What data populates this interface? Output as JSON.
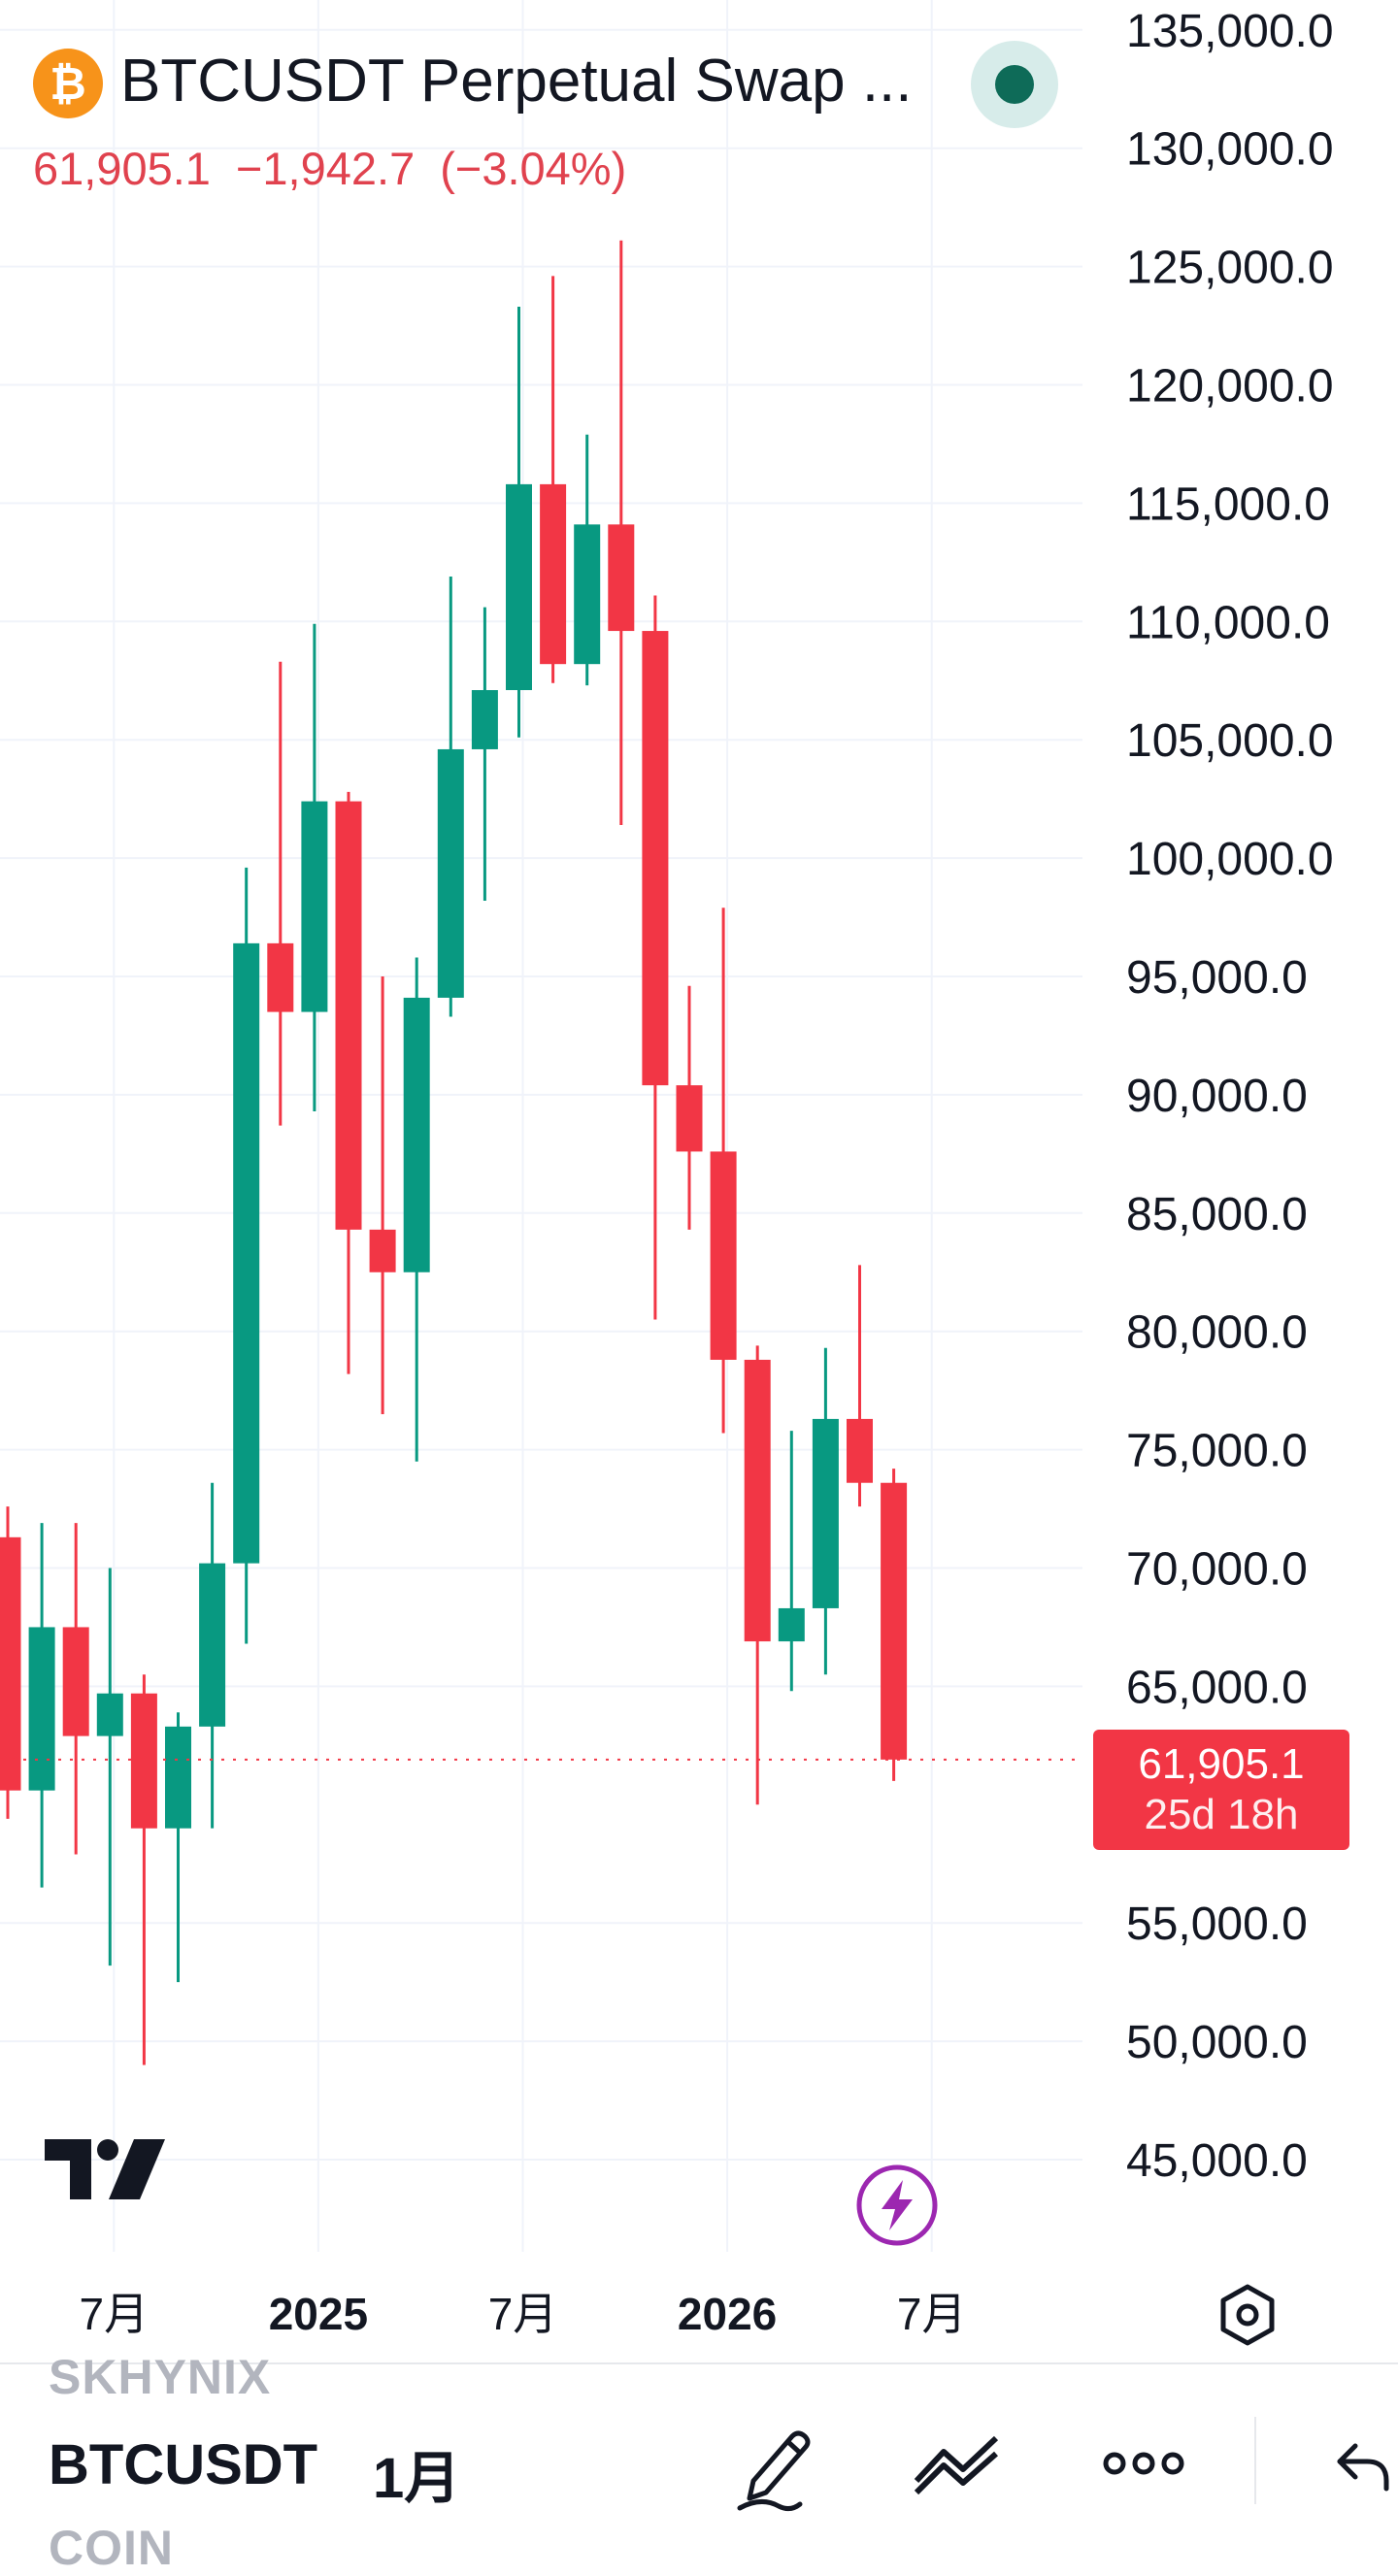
{
  "header": {
    "title": "BTCUSDT Perpetual Swap ...",
    "coin_icon_glyph": "₿",
    "last_price": "61,905.1",
    "change": "−1,942.7",
    "change_pct": "(−3.04%)",
    "down_color": "#f23645",
    "up_color": "#089981"
  },
  "price_badge": {
    "price": "61,905.1",
    "countdown": "25d 18h"
  },
  "bottom_bar": {
    "watermark_top": "SKHYNIX",
    "watermark_bottom": "COIN",
    "symbol": "BTCUSDT",
    "interval": "1月",
    "icons": [
      "pencil-icon",
      "line-tool-icon",
      "more-icon",
      "back-icon"
    ]
  },
  "chart_data": {
    "type": "candlestick",
    "interval": "1M",
    "ylim": [
      42000,
      136000
    ],
    "y_ticks": [
      "135,000.0",
      "130,000.0",
      "125,000.0",
      "120,000.0",
      "115,000.0",
      "110,000.0",
      "105,000.0",
      "100,000.0",
      "95,000.0",
      "90,000.0",
      "85,000.0",
      "80,000.0",
      "75,000.0",
      "70,000.0",
      "65,000.0",
      "55,000.0",
      "50,000.0",
      "45,000.0"
    ],
    "x_ticks": [
      {
        "label": "7月",
        "bold": false
      },
      {
        "label": "2025",
        "bold": true
      },
      {
        "label": "7月",
        "bold": false
      },
      {
        "label": "2026",
        "bold": true
      },
      {
        "label": "7月",
        "bold": false
      }
    ],
    "candles": [
      {
        "open": 71300,
        "high": 72600,
        "low": 59400,
        "close": 60600
      },
      {
        "open": 60600,
        "high": 71900,
        "low": 56500,
        "close": 67500
      },
      {
        "open": 67500,
        "high": 71900,
        "low": 57900,
        "close": 62900
      },
      {
        "open": 62900,
        "high": 70000,
        "low": 53200,
        "close": 64700
      },
      {
        "open": 64700,
        "high": 65500,
        "low": 49000,
        "close": 59000
      },
      {
        "open": 59000,
        "high": 63900,
        "low": 52500,
        "close": 63300
      },
      {
        "open": 63300,
        "high": 73600,
        "low": 59000,
        "close": 70200
      },
      {
        "open": 70200,
        "high": 99600,
        "low": 66800,
        "close": 96400
      },
      {
        "open": 96400,
        "high": 108300,
        "low": 88700,
        "close": 93500
      },
      {
        "open": 93500,
        "high": 109900,
        "low": 89300,
        "close": 102400
      },
      {
        "open": 102400,
        "high": 102800,
        "low": 78200,
        "close": 84300
      },
      {
        "open": 84300,
        "high": 95000,
        "low": 76500,
        "close": 82500
      },
      {
        "open": 82500,
        "high": 95800,
        "low": 74500,
        "close": 94100
      },
      {
        "open": 94100,
        "high": 111900,
        "low": 93300,
        "close": 104600
      },
      {
        "open": 104600,
        "high": 110600,
        "low": 98200,
        "close": 107100
      },
      {
        "open": 107100,
        "high": 123300,
        "low": 105100,
        "close": 115800
      },
      {
        "open": 115800,
        "high": 124600,
        "low": 107400,
        "close": 108200
      },
      {
        "open": 108200,
        "high": 117900,
        "low": 107300,
        "close": 114100
      },
      {
        "open": 114100,
        "high": 126100,
        "low": 101400,
        "close": 109600
      },
      {
        "open": 109600,
        "high": 111100,
        "low": 80500,
        "close": 90400
      },
      {
        "open": 90400,
        "high": 94600,
        "low": 84300,
        "close": 87600
      },
      {
        "open": 87600,
        "high": 97900,
        "low": 75700,
        "close": 78800
      },
      {
        "open": 78800,
        "high": 79400,
        "low": 60000,
        "close": 66900
      },
      {
        "open": 66900,
        "high": 75800,
        "low": 64800,
        "close": 68300
      },
      {
        "open": 68300,
        "high": 79300,
        "low": 65500,
        "close": 76300
      },
      {
        "open": 76300,
        "high": 82800,
        "low": 72600,
        "close": 73600
      },
      {
        "open": 73600,
        "high": 74200,
        "low": 61000,
        "close": 61905.1
      }
    ]
  }
}
